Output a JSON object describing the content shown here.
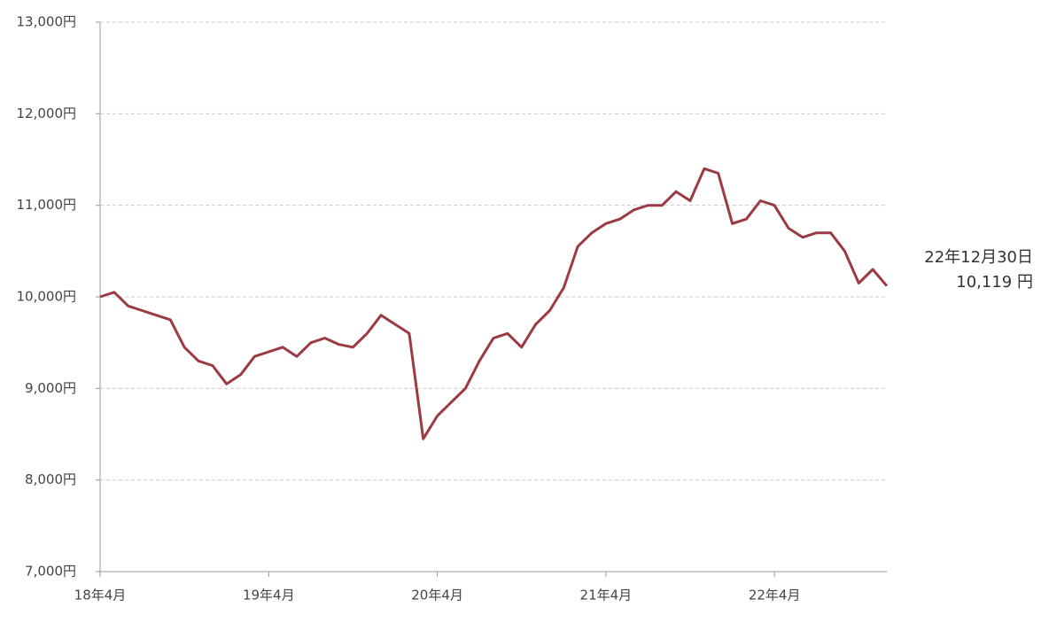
{
  "chart_data": {
    "type": "line",
    "x": [
      "2018-04",
      "2018-05",
      "2018-06",
      "2018-07",
      "2018-08",
      "2018-09",
      "2018-10",
      "2018-11",
      "2018-12",
      "2019-01",
      "2019-02",
      "2019-03",
      "2019-04",
      "2019-05",
      "2019-06",
      "2019-07",
      "2019-08",
      "2019-09",
      "2019-10",
      "2019-11",
      "2019-12",
      "2020-01",
      "2020-02",
      "2020-03",
      "2020-04",
      "2020-05",
      "2020-06",
      "2020-07",
      "2020-08",
      "2020-09",
      "2020-10",
      "2020-11",
      "2020-12",
      "2021-01",
      "2021-02",
      "2021-03",
      "2021-04",
      "2021-05",
      "2021-06",
      "2021-07",
      "2021-08",
      "2021-09",
      "2021-10",
      "2021-11",
      "2021-12",
      "2022-01",
      "2022-02",
      "2022-03",
      "2022-04",
      "2022-05",
      "2022-06",
      "2022-07",
      "2022-08",
      "2022-09",
      "2022-10",
      "2022-11",
      "2022-12"
    ],
    "series": [
      {
        "color": "#9b3a42",
        "values": [
          10000,
          10050,
          9900,
          9850,
          9800,
          9750,
          9450,
          9300,
          9250,
          9050,
          9150,
          9350,
          9400,
          9450,
          9350,
          9500,
          9550,
          9480,
          9450,
          9600,
          9800,
          9700,
          9600,
          8450,
          8700,
          8850,
          9000,
          9300,
          9550,
          9600,
          9450,
          9700,
          9850,
          10100,
          10550,
          10700,
          10800,
          10850,
          10950,
          11000,
          11000,
          11150,
          11050,
          11400,
          11350,
          10800,
          10850,
          11050,
          11000,
          10750,
          10650,
          10700,
          10700,
          10500,
          10150,
          10300,
          10119
        ]
      }
    ],
    "xlim": [
      "2018-04",
      "2022-12"
    ],
    "xticks": [
      {
        "value": "2018-04",
        "label": "18年4月"
      },
      {
        "value": "2019-04",
        "label": "19年4月"
      },
      {
        "value": "2020-04",
        "label": "20年4月"
      },
      {
        "value": "2021-04",
        "label": "21年4月"
      },
      {
        "value": "2022-04",
        "label": "22年4月"
      }
    ],
    "ylim": [
      7000,
      13000
    ],
    "yticks": [
      {
        "value": 7000,
        "label": "7,000円"
      },
      {
        "value": 8000,
        "label": "8,000円"
      },
      {
        "value": 9000,
        "label": "9,000円"
      },
      {
        "value": 10000,
        "label": "10,000円"
      },
      {
        "value": 11000,
        "label": "11,000円"
      },
      {
        "value": 12000,
        "label": "12,000円"
      },
      {
        "value": 13000,
        "label": "13,000円"
      }
    ],
    "grid": true,
    "annotations": [
      "22年12月30日",
      "10,119 円"
    ]
  }
}
